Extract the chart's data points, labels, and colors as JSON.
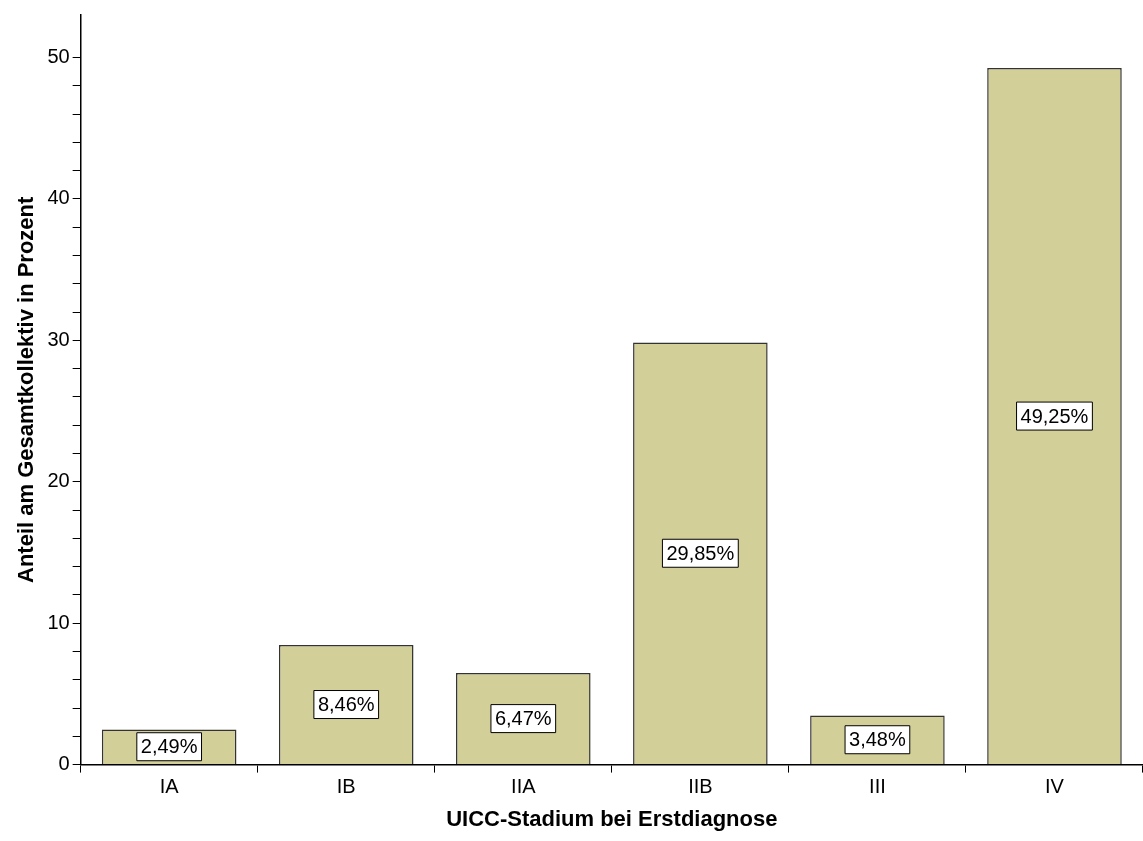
{
  "chart_data": {
    "type": "bar",
    "xlabel": "UICC-Stadium bei Erstdiagnose",
    "ylabel": "Anteil am Gesamtkollektiv in Prozent",
    "categories": [
      "IA",
      "IB",
      "IIA",
      "IIB",
      "III",
      "IV"
    ],
    "values": [
      2.49,
      8.46,
      6.47,
      29.85,
      3.48,
      49.25
    ],
    "value_labels": [
      "2,49%",
      "8,46%",
      "6,47%",
      "29,85%",
      "3,48%",
      "49,25%"
    ],
    "color": "#d3cf98",
    "ylim": [
      0,
      53
    ],
    "yticks": [
      0,
      {
        "value": 2,
        "label": null
      },
      {
        "value": 4,
        "label": null
      },
      {
        "value": 6,
        "label": null
      },
      {
        "value": 8,
        "label": null
      },
      10,
      {
        "value": 12,
        "label": null
      },
      {
        "value": 14,
        "label": null
      },
      {
        "value": 16,
        "label": null
      },
      {
        "value": 18,
        "label": null
      },
      20,
      {
        "value": 22,
        "label": null
      },
      {
        "value": 24,
        "label": null
      },
      {
        "value": 26,
        "label": null
      },
      {
        "value": 28,
        "label": null
      },
      30,
      {
        "value": 32,
        "label": null
      },
      {
        "value": 34,
        "label": null
      },
      {
        "value": 36,
        "label": null
      },
      {
        "value": 38,
        "label": null
      },
      40,
      {
        "value": 42,
        "label": null
      },
      {
        "value": 44,
        "label": null
      },
      {
        "value": 46,
        "label": null
      },
      {
        "value": 48,
        "label": null
      },
      50
    ],
    "grid": false,
    "legend": false
  }
}
